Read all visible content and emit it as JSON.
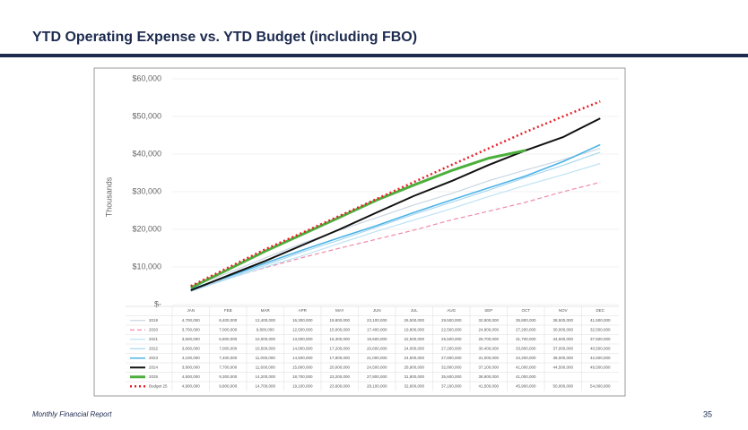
{
  "header": {
    "title": "YTD Operating Expense vs. YTD Budget (including FBO)"
  },
  "footer": {
    "left": "Monthly Financial Report",
    "page": "35"
  },
  "chart_data": {
    "type": "line",
    "ylabel": "Thousands",
    "categories": [
      "JAN",
      "FEB",
      "MAR",
      "APR",
      "MAY",
      "JUN",
      "JUL",
      "AUG",
      "SEP",
      "OCT",
      "NOV",
      "DEC"
    ],
    "ylim": [
      0,
      60000
    ],
    "yticks": [
      {
        "value": 0,
        "label": "$-"
      },
      {
        "value": 10000,
        "label": "$10,000"
      },
      {
        "value": 20000,
        "label": "$20,000"
      },
      {
        "value": 30000,
        "label": "$30,000"
      },
      {
        "value": 40000,
        "label": "$40,000"
      },
      {
        "value": 50000,
        "label": "$50,000"
      },
      {
        "value": 60000,
        "label": "$60,000"
      }
    ],
    "series": [
      {
        "name": "2019",
        "color": "#c9d6e3",
        "dash": "",
        "width": 1.2,
        "values": [
          4700,
          8400,
          12400,
          16300,
          19800,
          23100,
          26500,
          29500,
          32900,
          35800,
          38500,
          41500
        ],
        "value_labels": [
          "4,700,000",
          "8,400,000",
          "12,400,000",
          "16,300,000",
          "19,800,000",
          "23,100,000",
          "26,500,000",
          "29,500,000",
          "32,900,000",
          "35,800,000",
          "38,500,000",
          "41,500,000"
        ]
      },
      {
        "name": "2020",
        "color": "#f08aa8",
        "dash": "5,3",
        "width": 1.2,
        "values": [
          3700,
          7000,
          9800,
          12500,
          15000,
          17400,
          19800,
          22500,
          24800,
          27200,
          30000,
          32500
        ],
        "value_labels": [
          "3,700,000",
          "7,000,000",
          "9,800,000",
          "12,500,000",
          "15,000,000",
          "17,400,000",
          "19,800,000",
          "22,500,000",
          "24,800,000",
          "27,200,000",
          "30,000,000",
          "32,500,000"
        ]
      },
      {
        "name": "2021",
        "color": "#bfe3f5",
        "dash": "",
        "width": 1.2,
        "values": [
          3500,
          6800,
          10000,
          13000,
          16300,
          19500,
          22500,
          25500,
          28700,
          31700,
          34500,
          37500
        ],
        "value_labels": [
          "3,500,000",
          "6,800,000",
          "10,000,000",
          "13,000,000",
          "16,300,000",
          "19,500,000",
          "22,500,000",
          "25,500,000",
          "28,700,000",
          "31,700,000",
          "34,500,000",
          "37,500,000"
        ]
      },
      {
        "name": "2022",
        "color": "#a8d8f0",
        "dash": "",
        "width": 1.2,
        "values": [
          3600,
          7000,
          10500,
          14000,
          17200,
          20600,
          24000,
          27200,
          30400,
          33800,
          37000,
          40500
        ],
        "value_labels": [
          "3,600,000",
          "7,000,000",
          "10,500,000",
          "14,000,000",
          "17,200,000",
          "20,600,000",
          "24,000,000",
          "27,200,000",
          "30,400,000",
          "33,800,000",
          "37,000,000",
          "40,500,000"
        ]
      },
      {
        "name": "2023",
        "color": "#4db3e6",
        "dash": "",
        "width": 1.6,
        "values": [
          4100,
          7400,
          11000,
          14500,
          17800,
          21000,
          24500,
          27800,
          31000,
          34200,
          38000,
          42500
        ],
        "value_labels": [
          "4,100,000",
          "7,400,000",
          "11,000,000",
          "14,500,000",
          "17,800,000",
          "21,000,000",
          "24,500,000",
          "27,800,000",
          "31,000,000",
          "34,200,000",
          "38,000,000",
          "42,500,000"
        ]
      },
      {
        "name": "2024",
        "color": "#111111",
        "dash": "",
        "width": 2,
        "values": [
          3800,
          7700,
          11600,
          15800,
          20000,
          24500,
          28900,
          32800,
          37100,
          41000,
          44500,
          49500
        ],
        "value_labels": [
          "3,800,000",
          "7,700,000",
          "11,600,000",
          "15,800,000",
          "20,000,000",
          "24,500,000",
          "28,900,000",
          "32,800,000",
          "37,100,000",
          "41,000,000",
          "44,500,000",
          "49,500,000"
        ]
      },
      {
        "name": "2025",
        "color": "#4caf3c",
        "dash": "",
        "width": 3,
        "values": [
          4500,
          9300,
          14200,
          18700,
          23200,
          27800,
          31800,
          35600,
          38900,
          41000,
          null,
          null
        ],
        "value_labels": [
          "4,500,000",
          "9,300,000",
          "14,200,000",
          "18,700,000",
          "23,200,000",
          "27,800,000",
          "31,800,000",
          "35,600,000",
          "38,900,000",
          "41,000,000",
          null,
          null
        ]
      },
      {
        "name": "Budget 25",
        "color": "#e8202a",
        "dash": "2,3",
        "width": 2.5,
        "values": [
          4900,
          9800,
          14700,
          19100,
          23600,
          28100,
          32600,
          37100,
          41500,
          45900,
          50000,
          54000
        ],
        "value_labels": [
          "4,900,000",
          "9,800,000",
          "14,700,000",
          "19,100,000",
          "23,600,000",
          "28,100,000",
          "32,600,000",
          "37,100,000",
          "41,500,000",
          "45,900,000",
          "50,000,000",
          "54,000,000"
        ]
      }
    ]
  }
}
